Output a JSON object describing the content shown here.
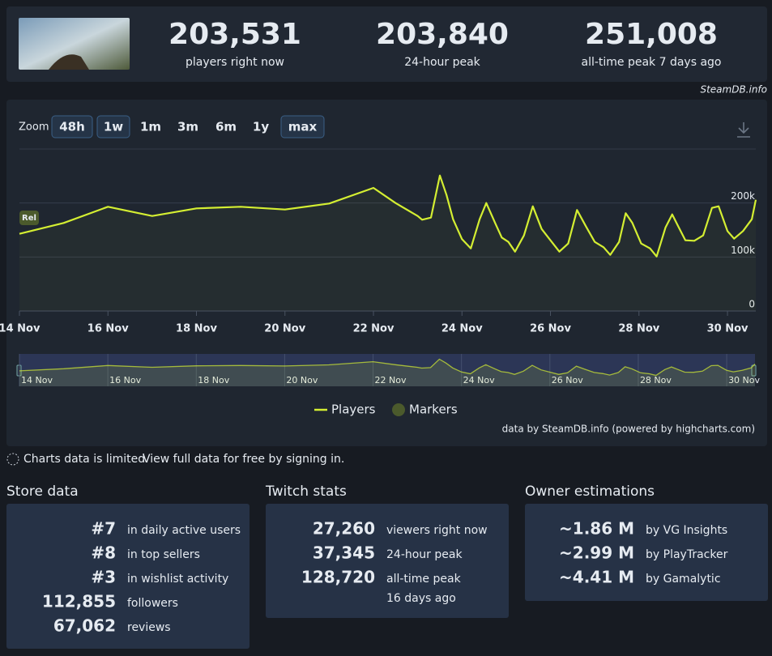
{
  "header": {
    "stats": [
      {
        "value": "203,531",
        "label": "players right now"
      },
      {
        "value": "203,840",
        "label": "24-hour peak"
      },
      {
        "value": "251,008",
        "label": "all-time peak 7 days ago"
      }
    ],
    "source": "SteamDB.info"
  },
  "chart_data": {
    "type": "line",
    "zoom_label": "Zoom",
    "zoom": [
      "48h",
      "1w",
      "1m",
      "3m",
      "6m",
      "1y",
      "max"
    ],
    "x": [
      14,
      15,
      16,
      17,
      18,
      19,
      20,
      21,
      22,
      22.5,
      23,
      23.1,
      23.3,
      23.5,
      23.65,
      23.8,
      24,
      24.2,
      24.4,
      24.55,
      24.75,
      24.9,
      25.05,
      25.2,
      25.4,
      25.6,
      25.8,
      26,
      26.2,
      26.4,
      26.6,
      26.8,
      27,
      27.2,
      27.35,
      27.55,
      27.7,
      27.85,
      28.05,
      28.25,
      28.4,
      28.6,
      28.75,
      28.9,
      29.05,
      29.25,
      29.45,
      29.65,
      29.8,
      30,
      30.15,
      30.35,
      30.55,
      30.64
    ],
    "series": [
      {
        "name": "Players",
        "color": "#d4ee32",
        "values": [
          143000,
          163000,
          193000,
          176000,
          190000,
          193000,
          188000,
          199000,
          228000,
          200000,
          176000,
          169000,
          173000,
          251000,
          215000,
          170000,
          133000,
          116000,
          170000,
          200000,
          163000,
          136000,
          128000,
          110000,
          140000,
          194000,
          152000,
          131000,
          110000,
          125000,
          187000,
          157000,
          128000,
          118000,
          104000,
          128000,
          181000,
          163000,
          125000,
          116000,
          101000,
          155000,
          179000,
          155000,
          131000,
          130000,
          140000,
          191000,
          194000,
          148000,
          134000,
          148000,
          170000,
          206000
        ]
      }
    ],
    "markers": {
      "name": "Markers",
      "color": "#4b5a2c",
      "points": [
        {
          "x": 14,
          "label": "Rel"
        }
      ]
    },
    "xlim": [
      14,
      30.64
    ],
    "xticks": [
      {
        "value": 14,
        "label": "14 Nov"
      },
      {
        "value": 16,
        "label": "16 Nov"
      },
      {
        "value": 18,
        "label": "18 Nov"
      },
      {
        "value": 20,
        "label": "20 Nov"
      },
      {
        "value": 22,
        "label": "22 Nov"
      },
      {
        "value": 24,
        "label": "24 Nov"
      },
      {
        "value": 26,
        "label": "26 Nov"
      },
      {
        "value": 28,
        "label": "28 Nov"
      },
      {
        "value": 30,
        "label": "30 Nov"
      }
    ],
    "ylim": [
      0,
      300000
    ],
    "yticks": [
      0,
      {
        "value": 100000,
        "label": "100k"
      },
      {
        "value": 200000,
        "label": "200k"
      }
    ],
    "grid": true,
    "credits": "data by SteamDB.info (powered by highcharts.com)"
  },
  "notice": {
    "text": "Charts data is limited.",
    "link": "View full data for free by signing in."
  },
  "sections": [
    {
      "title": "Store data",
      "rows": [
        {
          "value": "#7",
          "label": "in daily active users"
        },
        {
          "value": "#8",
          "label": "in top sellers"
        },
        {
          "value": "#3",
          "label": "in wishlist activity"
        },
        {
          "value": "112,855",
          "label": "followers"
        },
        {
          "value": "67,062",
          "label": "reviews"
        }
      ]
    },
    {
      "title": "Twitch stats",
      "rows": [
        {
          "value": "27,260",
          "label": "viewers right now"
        },
        {
          "value": "37,345",
          "label": "24-hour peak"
        },
        {
          "value": "128,720",
          "label": "all-time peak"
        }
      ],
      "note": "16 days ago"
    },
    {
      "title": "Owner estimations",
      "rows": [
        {
          "value": "~1.86 M",
          "label": "by VG Insights"
        },
        {
          "value": "~2.99 M",
          "label": "by PlayTracker"
        },
        {
          "value": "~4.41 M",
          "label": "by Gamalytic"
        }
      ]
    }
  ]
}
